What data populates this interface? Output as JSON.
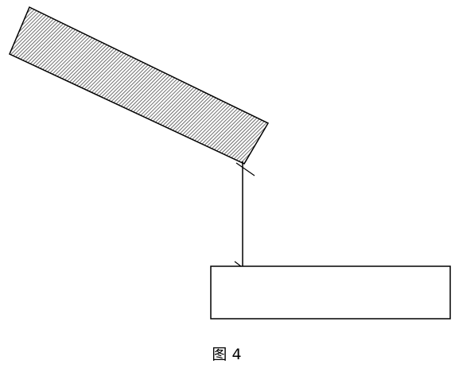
{
  "figure": {
    "caption": "图 4"
  },
  "colors": {
    "stroke": "#000000",
    "hatch": "#6e6e6e",
    "background": "#ffffff"
  }
}
